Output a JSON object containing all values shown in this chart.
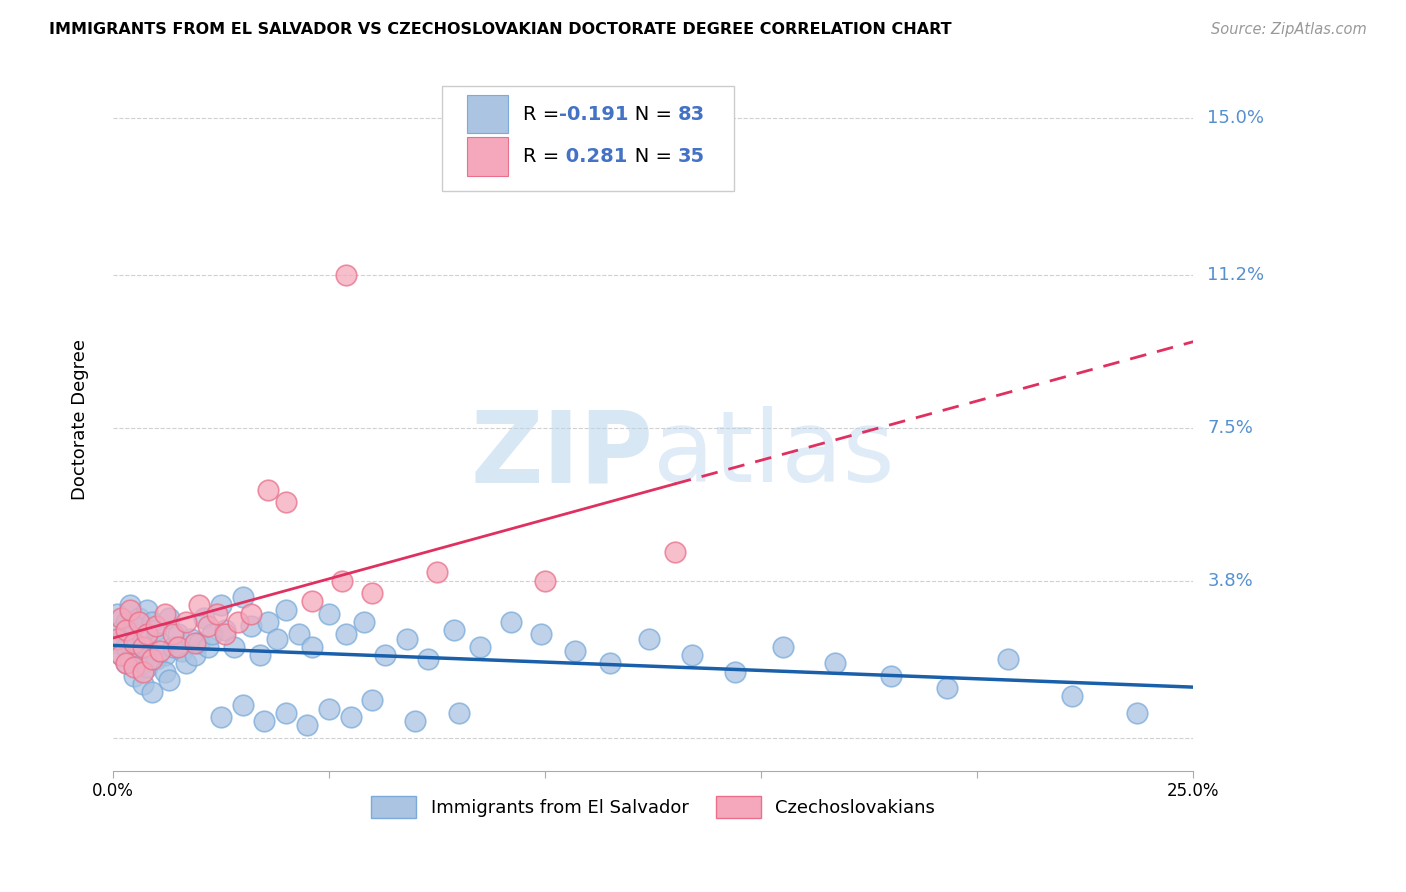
{
  "title": "IMMIGRANTS FROM EL SALVADOR VS CZECHOSLOVAKIAN DOCTORATE DEGREE CORRELATION CHART",
  "source": "Source: ZipAtlas.com",
  "ylabel": "Doctorate Degree",
  "yticks": [
    0.0,
    0.038,
    0.075,
    0.112,
    0.15
  ],
  "ytick_labels": [
    "",
    "3.8%",
    "7.5%",
    "11.2%",
    "15.0%"
  ],
  "xlim": [
    0.0,
    0.25
  ],
  "ylim": [
    -0.008,
    0.162
  ],
  "blue_color": "#aac4e2",
  "blue_edge": "#7aabda",
  "pink_color": "#f5a8bc",
  "pink_edge": "#e8708a",
  "trend_blue": "#1a5faa",
  "trend_pink": "#e03060",
  "legend_R_blue": "-0.191",
  "legend_N_blue": "83",
  "legend_R_pink": "0.281",
  "legend_N_pink": "35",
  "label_blue": "Immigrants from El Salvador",
  "label_pink": "Czechoslovakians",
  "watermark_zip": "ZIP",
  "watermark_atlas": "atlas",
  "blue_x": [
    0.001,
    0.001,
    0.002,
    0.002,
    0.003,
    0.003,
    0.003,
    0.004,
    0.004,
    0.004,
    0.005,
    0.005,
    0.005,
    0.006,
    0.006,
    0.007,
    0.007,
    0.007,
    0.008,
    0.008,
    0.008,
    0.009,
    0.009,
    0.01,
    0.01,
    0.011,
    0.012,
    0.012,
    0.013,
    0.013,
    0.014,
    0.015,
    0.016,
    0.017,
    0.018,
    0.019,
    0.02,
    0.021,
    0.022,
    0.023,
    0.025,
    0.026,
    0.028,
    0.03,
    0.032,
    0.034,
    0.036,
    0.038,
    0.04,
    0.043,
    0.046,
    0.05,
    0.054,
    0.058,
    0.063,
    0.068,
    0.073,
    0.079,
    0.085,
    0.092,
    0.099,
    0.107,
    0.115,
    0.124,
    0.134,
    0.144,
    0.155,
    0.167,
    0.18,
    0.193,
    0.207,
    0.222,
    0.237,
    0.025,
    0.03,
    0.035,
    0.04,
    0.045,
    0.05,
    0.055,
    0.06,
    0.07,
    0.08
  ],
  "blue_y": [
    0.023,
    0.03,
    0.026,
    0.02,
    0.028,
    0.022,
    0.018,
    0.025,
    0.032,
    0.019,
    0.027,
    0.015,
    0.023,
    0.021,
    0.029,
    0.024,
    0.018,
    0.013,
    0.031,
    0.022,
    0.017,
    0.028,
    0.011,
    0.026,
    0.019,
    0.023,
    0.02,
    0.016,
    0.029,
    0.014,
    0.022,
    0.025,
    0.021,
    0.018,
    0.024,
    0.02,
    0.023,
    0.029,
    0.022,
    0.025,
    0.032,
    0.026,
    0.022,
    0.034,
    0.027,
    0.02,
    0.028,
    0.024,
    0.031,
    0.025,
    0.022,
    0.03,
    0.025,
    0.028,
    0.02,
    0.024,
    0.019,
    0.026,
    0.022,
    0.028,
    0.025,
    0.021,
    0.018,
    0.024,
    0.02,
    0.016,
    0.022,
    0.018,
    0.015,
    0.012,
    0.019,
    0.01,
    0.006,
    0.005,
    0.008,
    0.004,
    0.006,
    0.003,
    0.007,
    0.005,
    0.009,
    0.004,
    0.006
  ],
  "pink_x": [
    0.001,
    0.002,
    0.002,
    0.003,
    0.003,
    0.004,
    0.005,
    0.005,
    0.006,
    0.007,
    0.007,
    0.008,
    0.009,
    0.01,
    0.011,
    0.012,
    0.014,
    0.015,
    0.017,
    0.019,
    0.02,
    0.022,
    0.024,
    0.026,
    0.029,
    0.032,
    0.036,
    0.04,
    0.046,
    0.053,
    0.054,
    0.06,
    0.075,
    0.1,
    0.13
  ],
  "pink_y": [
    0.024,
    0.029,
    0.02,
    0.026,
    0.018,
    0.031,
    0.023,
    0.017,
    0.028,
    0.022,
    0.016,
    0.025,
    0.019,
    0.027,
    0.021,
    0.03,
    0.025,
    0.022,
    0.028,
    0.023,
    0.032,
    0.027,
    0.03,
    0.025,
    0.028,
    0.03,
    0.06,
    0.057,
    0.033,
    0.038,
    0.112,
    0.035,
    0.04,
    0.038,
    0.045
  ]
}
